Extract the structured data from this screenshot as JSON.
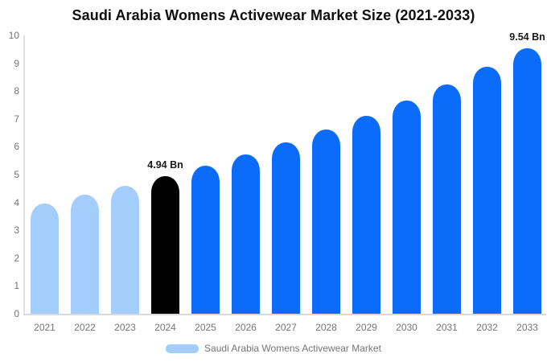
{
  "title": "Saudi Arabia Womens Activewear Market Size (2021-2033)",
  "chart_data": {
    "type": "bar",
    "title": "Saudi Arabia Womens Activewear Market Size (2021-2033)",
    "categories": [
      "2021",
      "2022",
      "2023",
      "2024",
      "2025",
      "2026",
      "2027",
      "2028",
      "2029",
      "2030",
      "2031",
      "2032",
      "2033"
    ],
    "values": [
      3.97,
      4.27,
      4.59,
      4.94,
      5.31,
      5.72,
      6.15,
      6.61,
      7.12,
      7.66,
      8.24,
      8.86,
      9.54
    ],
    "unit": "Bn",
    "xlabel": "",
    "ylabel": "",
    "ylim": [
      0,
      10
    ],
    "yticks": [
      0,
      1,
      2,
      3,
      4,
      5,
      6,
      7,
      8,
      9,
      10
    ],
    "grid": false,
    "legend": {
      "position": "bottom",
      "label": "Saudi Arabia Womens Activewear Market"
    },
    "annotations": [
      {
        "category": "2024",
        "text": "4.94 Bn"
      },
      {
        "category": "2033",
        "text": "9.54 Bn"
      }
    ]
  },
  "colors": {
    "historical_bar": "#A3CDFA",
    "base_year_bar": "#000000",
    "forecast_bar": "#0B6CFA",
    "axis_text": "#757575",
    "axis_line": "#E0E0E0",
    "baseline": "#D9D9D9",
    "title_text": "#0F0F0F",
    "legend_swatch": "#A3CDFA"
  }
}
